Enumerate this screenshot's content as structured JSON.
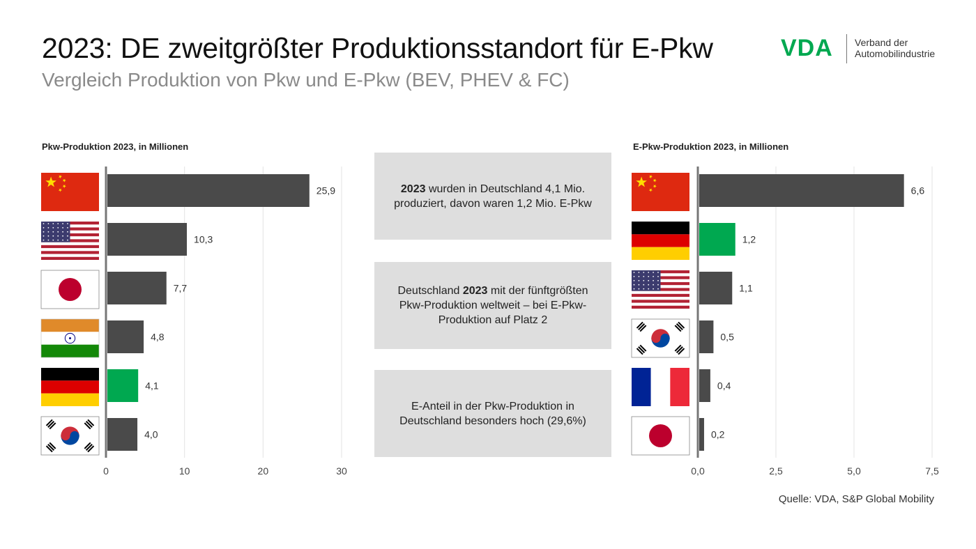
{
  "header": {
    "title": "2023: DE zweitgrößter Produktionsstandort für E-Pkw",
    "subtitle": "Vergleich Produktion von Pkw und E-Pkw (BEV, PHEV & FC)"
  },
  "logo": {
    "mark": "VDA",
    "line1": "Verband der",
    "line2": "Automobilindustrie",
    "color": "#00a850"
  },
  "info_boxes": [
    {
      "bold": "2023",
      "text": " wurden in Deutschland 4,1 Mio. produziert, davon waren 1,2 Mio. E-Pkw"
    },
    {
      "before": "Deutschland ",
      "bold": "2023",
      "after": " mit der fünftgrößten Pkw-Produktion weltweit – bei E-Pkw-Produktion auf Platz 2"
    },
    {
      "text": "E-Anteil in der Pkw-Produktion in Deutschland besonders hoch (29,6%)"
    }
  ],
  "source": "Quelle: VDA, S&P Global Mobility",
  "colors": {
    "bar": "#4a4a4a",
    "highlight": "#00a850",
    "grid": "#e3e3e3",
    "axis": "#777777"
  },
  "chart_data": [
    {
      "type": "bar",
      "orientation": "horizontal",
      "title": "Pkw-Produktion 2023, in Millionen",
      "categories": [
        "China",
        "USA",
        "Japan",
        "Indien",
        "Deutschland",
        "Südkorea"
      ],
      "flags": [
        "cn",
        "us",
        "jp",
        "in",
        "de",
        "kr"
      ],
      "values": [
        25.9,
        10.3,
        7.7,
        4.8,
        4.1,
        4.0
      ],
      "value_labels": [
        "25,9",
        "10,3",
        "7,7",
        "4,8",
        "4,1",
        "4,0"
      ],
      "highlight": "Deutschland",
      "xlim": [
        0,
        30
      ],
      "xticks": [
        0,
        10,
        20,
        30
      ],
      "xtick_labels": [
        "0",
        "10",
        "20",
        "30"
      ],
      "grid": true
    },
    {
      "type": "bar",
      "orientation": "horizontal",
      "title": "E-Pkw-Produktion 2023, in Millionen",
      "categories": [
        "China",
        "Deutschland",
        "USA",
        "Südkorea",
        "Frankreich",
        "Japan"
      ],
      "flags": [
        "cn",
        "de",
        "us",
        "kr",
        "fr",
        "jp"
      ],
      "values": [
        6.6,
        1.2,
        1.1,
        0.5,
        0.4,
        0.2
      ],
      "value_labels": [
        "6,6",
        "1,2",
        "1,1",
        "0,5",
        "0,4",
        "0,2"
      ],
      "highlight": "Deutschland",
      "xlim": [
        0,
        7.5
      ],
      "xticks": [
        0,
        2.5,
        5.0,
        7.5
      ],
      "xtick_labels": [
        "0,0",
        "2,5",
        "5,0",
        "7,5"
      ],
      "grid": true
    }
  ]
}
